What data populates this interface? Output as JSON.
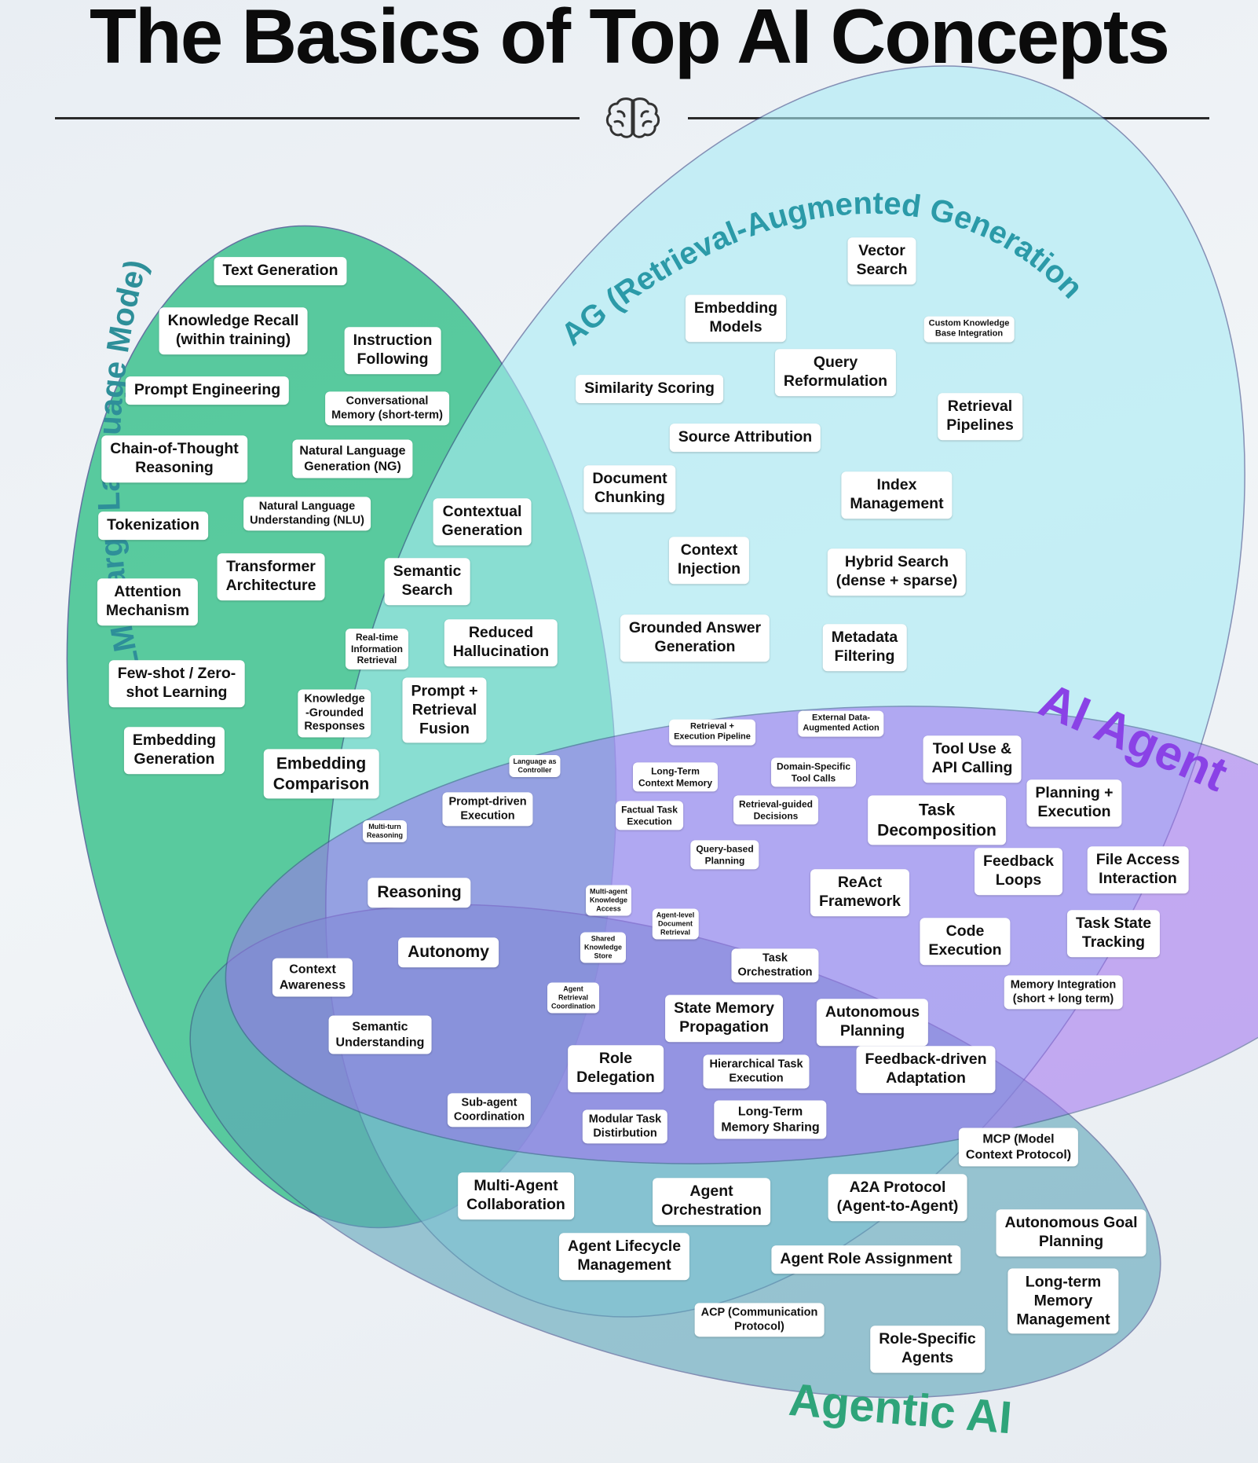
{
  "title": "The Basics of Top AI Concepts",
  "icons": {
    "header_divider": "brain-icon"
  },
  "diagram": {
    "sets": [
      {
        "id": "llm",
        "label": "LLM (Large Language Mode)",
        "fill": "#2fbf86",
        "label_color": "#2e8f99"
      },
      {
        "id": "rag",
        "label": "RAG (Retrieval-Augmented Generation)",
        "fill": "#a9ecf5",
        "label_color": "#2b9aa8"
      },
      {
        "id": "agent",
        "label": "AI Agent",
        "fill": "#a070f0",
        "label_color": "#8a42e6"
      },
      {
        "id": "agentic",
        "label": "Agentic AI",
        "fill": "#5fa6ba",
        "label_color": "#2fa47a"
      }
    ],
    "concepts": [
      {
        "text": "Text Generation",
        "size": "l"
      },
      {
        "text": "Knowledge Recall\n(within training)",
        "size": "l"
      },
      {
        "text": "Instruction\nFollowing",
        "size": "l"
      },
      {
        "text": "Prompt Engineering",
        "size": "l"
      },
      {
        "text": "Conversational\nMemory (short-term)",
        "size": "s"
      },
      {
        "text": "Chain-of-Thought\nReasoning",
        "size": "l"
      },
      {
        "text": "Natural Language\nGeneration (NG)",
        "size": "m"
      },
      {
        "text": "Tokenization",
        "size": "l"
      },
      {
        "text": "Natural Language\nUnderstanding (NLU)",
        "size": "s"
      },
      {
        "text": "Transformer\nArchitecture",
        "size": "l"
      },
      {
        "text": "Attention\nMechanism",
        "size": "l"
      },
      {
        "text": "Few-shot / Zero-\nshot Learning",
        "size": "l"
      },
      {
        "text": "Embedding\nGeneration",
        "size": "l"
      },
      {
        "text": "Contextual\nGeneration",
        "size": "l"
      },
      {
        "text": "Semantic\nSearch",
        "size": "l"
      },
      {
        "text": "Real-time\nInformation\nRetrieval",
        "size": "xs"
      },
      {
        "text": "Reduced\nHallucination",
        "size": "l"
      },
      {
        "text": "Knowledge\n-Grounded\nResponses",
        "size": "s"
      },
      {
        "text": "Prompt +\nRetrieval\nFusion",
        "size": "l"
      },
      {
        "text": "Embedding\nComparison",
        "size": "xl"
      },
      {
        "text": "Vector\nSearch",
        "size": "l"
      },
      {
        "text": "Embedding\nModels",
        "size": "l"
      },
      {
        "text": "Custom Knowledge\nBase Integration",
        "size": "xxs"
      },
      {
        "text": "Query\nReformulation",
        "size": "l"
      },
      {
        "text": "Similarity Scoring",
        "size": "l"
      },
      {
        "text": "Retrieval\nPipelines",
        "size": "l"
      },
      {
        "text": "Source Attribution",
        "size": "l"
      },
      {
        "text": "Document\nChunking",
        "size": "l"
      },
      {
        "text": "Index\nManagement",
        "size": "l"
      },
      {
        "text": "Context\nInjection",
        "size": "l"
      },
      {
        "text": "Hybrid Search\n(dense + sparse)",
        "size": "l"
      },
      {
        "text": "Grounded Answer\nGeneration",
        "size": "l"
      },
      {
        "text": "Metadata\nFiltering",
        "size": "l"
      },
      {
        "text": "Retrieval +\nExecution Pipeline",
        "size": "xxs"
      },
      {
        "text": "External Data-\nAugmented Action",
        "size": "xxs"
      },
      {
        "text": "Language as\nController",
        "size": "xxxs"
      },
      {
        "text": "Long-Term\nContext Memory",
        "size": "xs"
      },
      {
        "text": "Domain-Specific\nTool Calls",
        "size": "xs"
      },
      {
        "text": "Prompt-driven\nExecution",
        "size": "s"
      },
      {
        "text": "Factual Task\nExecution",
        "size": "xs"
      },
      {
        "text": "Retrieval-guided\nDecisions",
        "size": "xs"
      },
      {
        "text": "Multi-turn\nReasoning",
        "size": "xxxs"
      },
      {
        "text": "Query-based\nPlanning",
        "size": "xs"
      },
      {
        "text": "Tool Use &\nAPI Calling",
        "size": "l"
      },
      {
        "text": "Planning +\nExecution",
        "size": "l"
      },
      {
        "text": "Task\nDecomposition",
        "size": "xl"
      },
      {
        "text": "Feedback\nLoops",
        "size": "l"
      },
      {
        "text": "File Access\nInteraction",
        "size": "l"
      },
      {
        "text": "ReAct\nFramework",
        "size": "l"
      },
      {
        "text": "Code\nExecution",
        "size": "l"
      },
      {
        "text": "Task State\nTracking",
        "size": "l"
      },
      {
        "text": "Memory Integration\n(short + long term)",
        "size": "s"
      },
      {
        "text": "Reasoning",
        "size": "xl"
      },
      {
        "text": "Autonomy",
        "size": "xl"
      },
      {
        "text": "Context\nAwareness",
        "size": "m"
      },
      {
        "text": "Semantic\nUnderstanding",
        "size": "m"
      },
      {
        "text": "Multi-agent\nKnowledge\nAccess",
        "size": "xxxs"
      },
      {
        "text": "Agent-level\nDocument\nRetrieval",
        "size": "xxxs"
      },
      {
        "text": "Shared\nKnowledge\nStore",
        "size": "xxxs"
      },
      {
        "text": "Agent\nRetrieval\nCoordination",
        "size": "xxxs"
      },
      {
        "text": "Task\nOrchestration",
        "size": "s"
      },
      {
        "text": "State Memory\nPropagation",
        "size": "l"
      },
      {
        "text": "Autonomous\nPlanning",
        "size": "l"
      },
      {
        "text": "Role\nDelegation",
        "size": "l"
      },
      {
        "text": "Hierarchical Task\nExecution",
        "size": "s"
      },
      {
        "text": "Feedback-driven\nAdaptation",
        "size": "l"
      },
      {
        "text": "Sub-agent\nCoordination",
        "size": "s"
      },
      {
        "text": "Modular Task\nDistirbution",
        "size": "s"
      },
      {
        "text": "Long-Term\nMemory Sharing",
        "size": "m"
      },
      {
        "text": "MCP (Model\nContext Protocol)",
        "size": "m"
      },
      {
        "text": "Multi-Agent\nCollaboration",
        "size": "l"
      },
      {
        "text": "Agent\nOrchestration",
        "size": "l"
      },
      {
        "text": "A2A Protocol\n(Agent-to-Agent)",
        "size": "l"
      },
      {
        "text": "Autonomous Goal\nPlanning",
        "size": "l"
      },
      {
        "text": "Agent Lifecycle\nManagement",
        "size": "l"
      },
      {
        "text": "Agent Role Assignment",
        "size": "l"
      },
      {
        "text": "Long-term\nMemory\nManagement",
        "size": "l"
      },
      {
        "text": "ACP (Communication\nProtocol)",
        "size": "s"
      },
      {
        "text": "Role-Specific\nAgents",
        "size": "l"
      }
    ]
  }
}
